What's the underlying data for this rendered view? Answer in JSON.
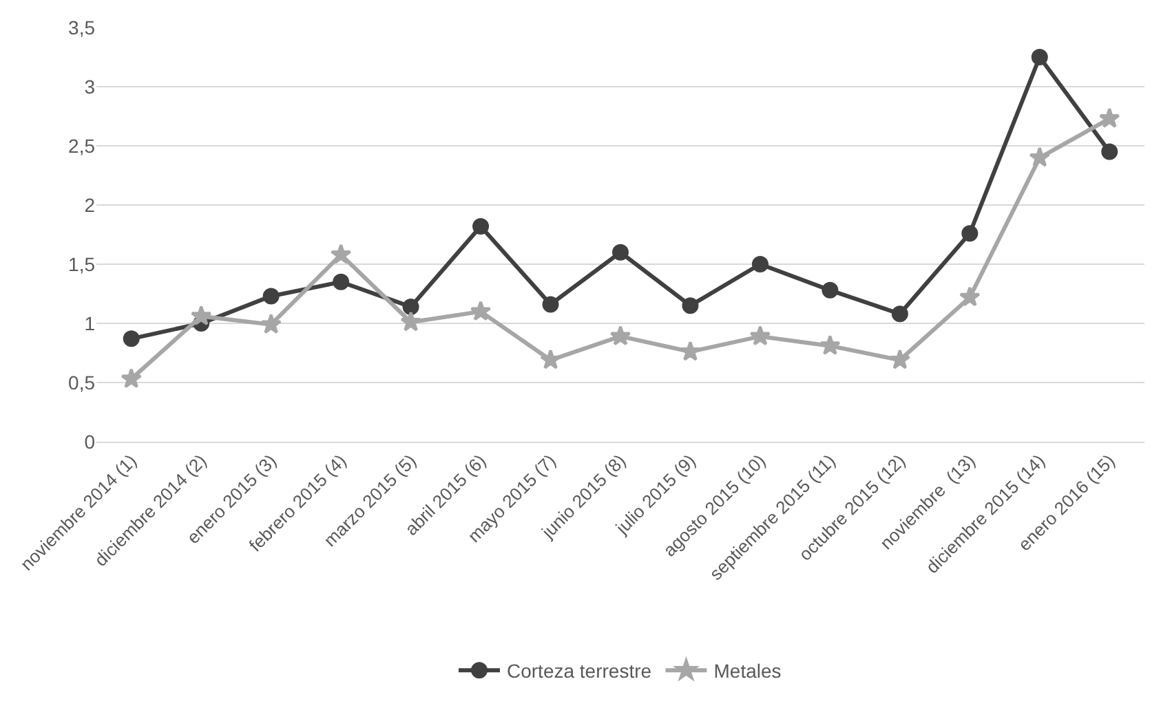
{
  "chart_data": {
    "type": "line",
    "categories": [
      "noviembre 2014 (1)",
      "diciembre 2014 (2)",
      "enero 2015 (3)",
      "febrero 2015 (4)",
      "marzo 2015 (5)",
      "abril 2015 (6)",
      "mayo 2015 (7)",
      "junio 2015 (8)",
      "julio 2015 (9)",
      "agosto 2015 (10)",
      "septiembre 2015 (11)",
      "octubre 2015 (12)",
      "noviembre  (13)",
      "diciembre 2015 (14)",
      "enero 2016 (15)"
    ],
    "series": [
      {
        "name": "Corteza terrestre",
        "color": "#404040",
        "marker": "circle",
        "values": [
          0.87,
          1.0,
          1.23,
          1.35,
          1.14,
          1.82,
          1.16,
          1.6,
          1.15,
          1.5,
          1.28,
          1.08,
          1.76,
          3.25,
          2.45
        ]
      },
      {
        "name": "Metales",
        "color": "#a6a6a6",
        "marker": "star",
        "values": [
          0.53,
          1.06,
          0.99,
          1.58,
          1.01,
          1.1,
          0.69,
          0.89,
          0.76,
          0.89,
          0.81,
          0.69,
          1.22,
          2.4,
          2.73
        ]
      }
    ],
    "ylim": [
      0,
      3.5
    ],
    "yticks": [
      0,
      {
        "value": 0.5,
        "label": "0,5"
      },
      1,
      {
        "value": 1.5,
        "label": "1,5"
      },
      2,
      {
        "value": 2.5,
        "label": "2,5"
      },
      3,
      {
        "value": 3.5,
        "label": "3,5"
      }
    ],
    "grid": "y",
    "legend": "bottom",
    "line_style": "solid"
  }
}
